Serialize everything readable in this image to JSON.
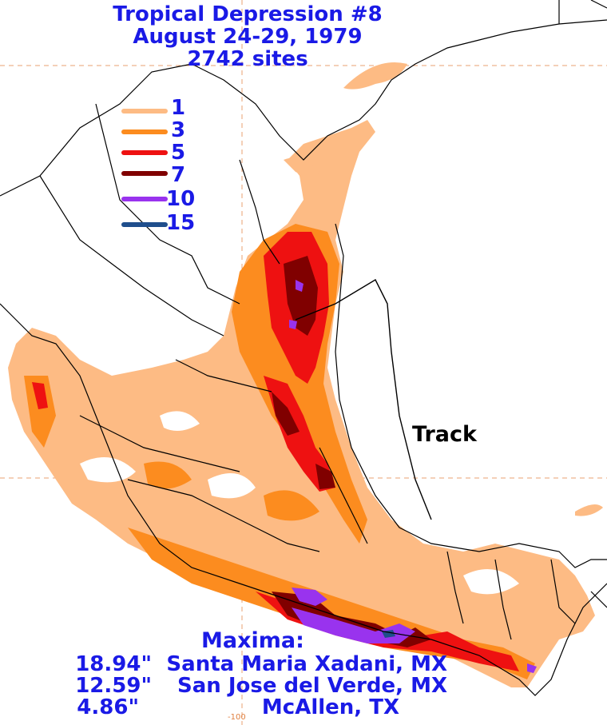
{
  "title": {
    "line1": "Tropical Depression #8",
    "line2": "August 24-29, 1979",
    "line3": "2742 sites"
  },
  "legend": [
    {
      "label": "1",
      "color": "#fdbb84"
    },
    {
      "label": "3",
      "color": "#fc8c1f"
    },
    {
      "label": "5",
      "color": "#ee1111"
    },
    {
      "label": "7",
      "color": "#800000"
    },
    {
      "label": "10",
      "color": "#9933ee"
    },
    {
      "label": "15",
      "color": "#1f4e8c"
    }
  ],
  "track_label": "Track",
  "maxima": {
    "title": "Maxima:",
    "rows": [
      {
        "value": "18.94\"",
        "place": "Santa Maria Xadani, MX"
      },
      {
        "value": "12.59\"",
        "place": "San Jose del Verde, MX"
      },
      {
        "value": "4.86\"",
        "place": "McAllen, TX"
      }
    ]
  },
  "axis": {
    "lon_tick": "-100"
  }
}
